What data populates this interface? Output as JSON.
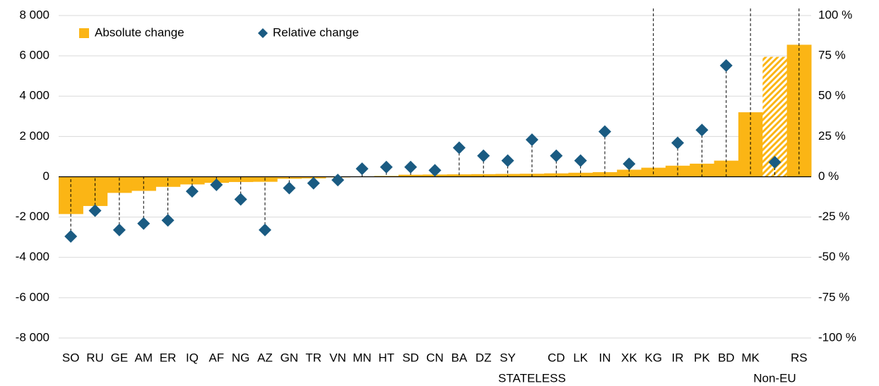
{
  "chart_data": {
    "type": "bar_dot",
    "categories": [
      "SO",
      "RU",
      "GE",
      "AM",
      "ER",
      "IQ",
      "AF",
      "NG",
      "AZ",
      "GN",
      "TR",
      "VN",
      "MN",
      "HT",
      "SD",
      "CN",
      "BA",
      "DZ",
      "SY",
      "STATELESS",
      "CD",
      "LK",
      "IN",
      "XK",
      "KG",
      "IR",
      "PK",
      "BD",
      "MK",
      "Non-EU",
      "RS"
    ],
    "series": [
      {
        "name": "Absolute change",
        "color": "#fbb515",
        "hatched_index": 29,
        "values": [
          -1850,
          -1450,
          -800,
          -700,
          -500,
          -380,
          -300,
          -260,
          -250,
          -100,
          -80,
          -30,
          20,
          40,
          100,
          110,
          120,
          130,
          140,
          150,
          170,
          200,
          230,
          350,
          450,
          550,
          650,
          800,
          3200,
          5950,
          6550
        ]
      },
      {
        "name": "Relative change",
        "color": "#1a5b82",
        "axis": "y2",
        "values": [
          -37,
          -21,
          -33,
          -29,
          -27,
          -9,
          -5,
          -14,
          -33,
          -7,
          -4,
          -2,
          5,
          6,
          6,
          4,
          18,
          13,
          10,
          23,
          13,
          10,
          28,
          8,
          null,
          21,
          29,
          69,
          null,
          9,
          null
        ]
      }
    ],
    "ylim": [
      -8000,
      8000
    ],
    "yticks": [
      {
        "value": -8000,
        "label": "-8 000"
      },
      {
        "value": -6000,
        "label": "-6 000"
      },
      {
        "value": -4000,
        "label": "-4 000"
      },
      {
        "value": -2000,
        "label": "-2 000"
      },
      0,
      {
        "value": 2000,
        "label": "2 000"
      },
      {
        "value": 4000,
        "label": "4 000"
      },
      {
        "value": 6000,
        "label": "6 000"
      },
      {
        "value": 8000,
        "label": "8 000"
      }
    ],
    "y2lim": [
      -100,
      100
    ],
    "y2ticks": [
      {
        "value": -100,
        "label": "-100 %"
      },
      {
        "value": -75,
        "label": "-75 %"
      },
      {
        "value": -50,
        "label": "-50 %"
      },
      {
        "value": -25,
        "label": "-25 %"
      },
      {
        "value": 0,
        "label": "0 %"
      },
      {
        "value": 25,
        "label": "25 %"
      },
      {
        "value": 50,
        "label": "50 %"
      },
      {
        "value": 75,
        "label": "75 %"
      },
      {
        "value": 100,
        "label": "100 %"
      }
    ],
    "grid": true,
    "legend": "top-left"
  }
}
